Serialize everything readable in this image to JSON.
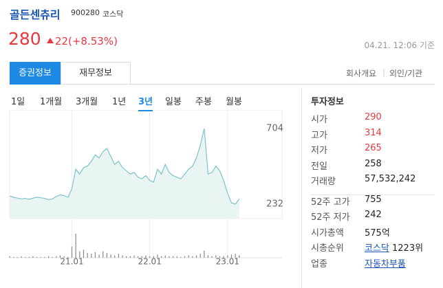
{
  "header": {
    "name": "골든센츄리",
    "code": "900280",
    "market": "코스닥"
  },
  "price": {
    "value": "280",
    "change": "22",
    "change_pct": "(+8.53%)",
    "timestamp": "04.21. 12:06 기준"
  },
  "tabs": [
    "증권정보",
    "재무정보"
  ],
  "links": [
    "회사개요",
    "외인/기관"
  ],
  "periods": [
    "1일",
    "1개월",
    "3개월",
    "1년",
    "3년",
    "일봉",
    "주봉",
    "월봉"
  ],
  "active_period": 4,
  "chart_data": {
    "type": "line",
    "color": "#7fc1cc",
    "fill": "#e8f5f3",
    "values": [
      283,
      275,
      270,
      265,
      268,
      262,
      270,
      275,
      272,
      268,
      260,
      265,
      280,
      290,
      285,
      275,
      330,
      450,
      420,
      460,
      470,
      500,
      540,
      520,
      560,
      580,
      530,
      480,
      500,
      460,
      440,
      420,
      430,
      400,
      390,
      410,
      380,
      370,
      450,
      420,
      480,
      430,
      410,
      400,
      390,
      420,
      450,
      470,
      520,
      600,
      704,
      420,
      430,
      470,
      440,
      380,
      300,
      240,
      232,
      265
    ],
    "ylim": [
      142,
      820
    ],
    "yticks": [
      232,
      704
    ],
    "xlim": [
      0,
      70
    ],
    "xticks": [
      {
        "value": 16,
        "label": "21.01"
      },
      {
        "value": 36,
        "label": "22.01"
      },
      {
        "value": 56,
        "label": "23.01"
      }
    ],
    "volume": [
      2,
      1,
      1,
      2,
      1,
      1,
      2,
      1,
      1,
      1,
      2,
      1,
      2,
      3,
      2,
      1,
      14,
      30,
      8,
      10,
      6,
      5,
      7,
      4,
      8,
      6,
      4,
      3,
      5,
      3,
      2,
      2,
      3,
      2,
      2,
      3,
      2,
      2,
      4,
      2,
      3,
      2,
      2,
      2,
      1,
      2,
      3,
      2,
      3,
      5,
      9,
      3,
      2,
      3,
      2,
      2,
      3,
      4,
      5,
      3
    ],
    "vlim": [
      0,
      30
    ]
  },
  "info": {
    "title": "투자정보",
    "rows": [
      {
        "label": "시가",
        "value": "290",
        "color": "red"
      },
      {
        "label": "고가",
        "value": "314",
        "color": "red"
      },
      {
        "label": "저가",
        "value": "265",
        "color": "red"
      },
      {
        "label": "전일",
        "value": "258"
      },
      {
        "label": "거래량",
        "value": "57,532,242"
      },
      {
        "label": "52주 고가",
        "value": "755"
      },
      {
        "label": "52주 저가",
        "value": "242"
      },
      {
        "label": "시가총액",
        "value": "575억"
      },
      {
        "label": "시총순위",
        "link": "코스닥",
        "value": "1223위"
      },
      {
        "label": "업종",
        "link": "자동차부품"
      }
    ]
  }
}
